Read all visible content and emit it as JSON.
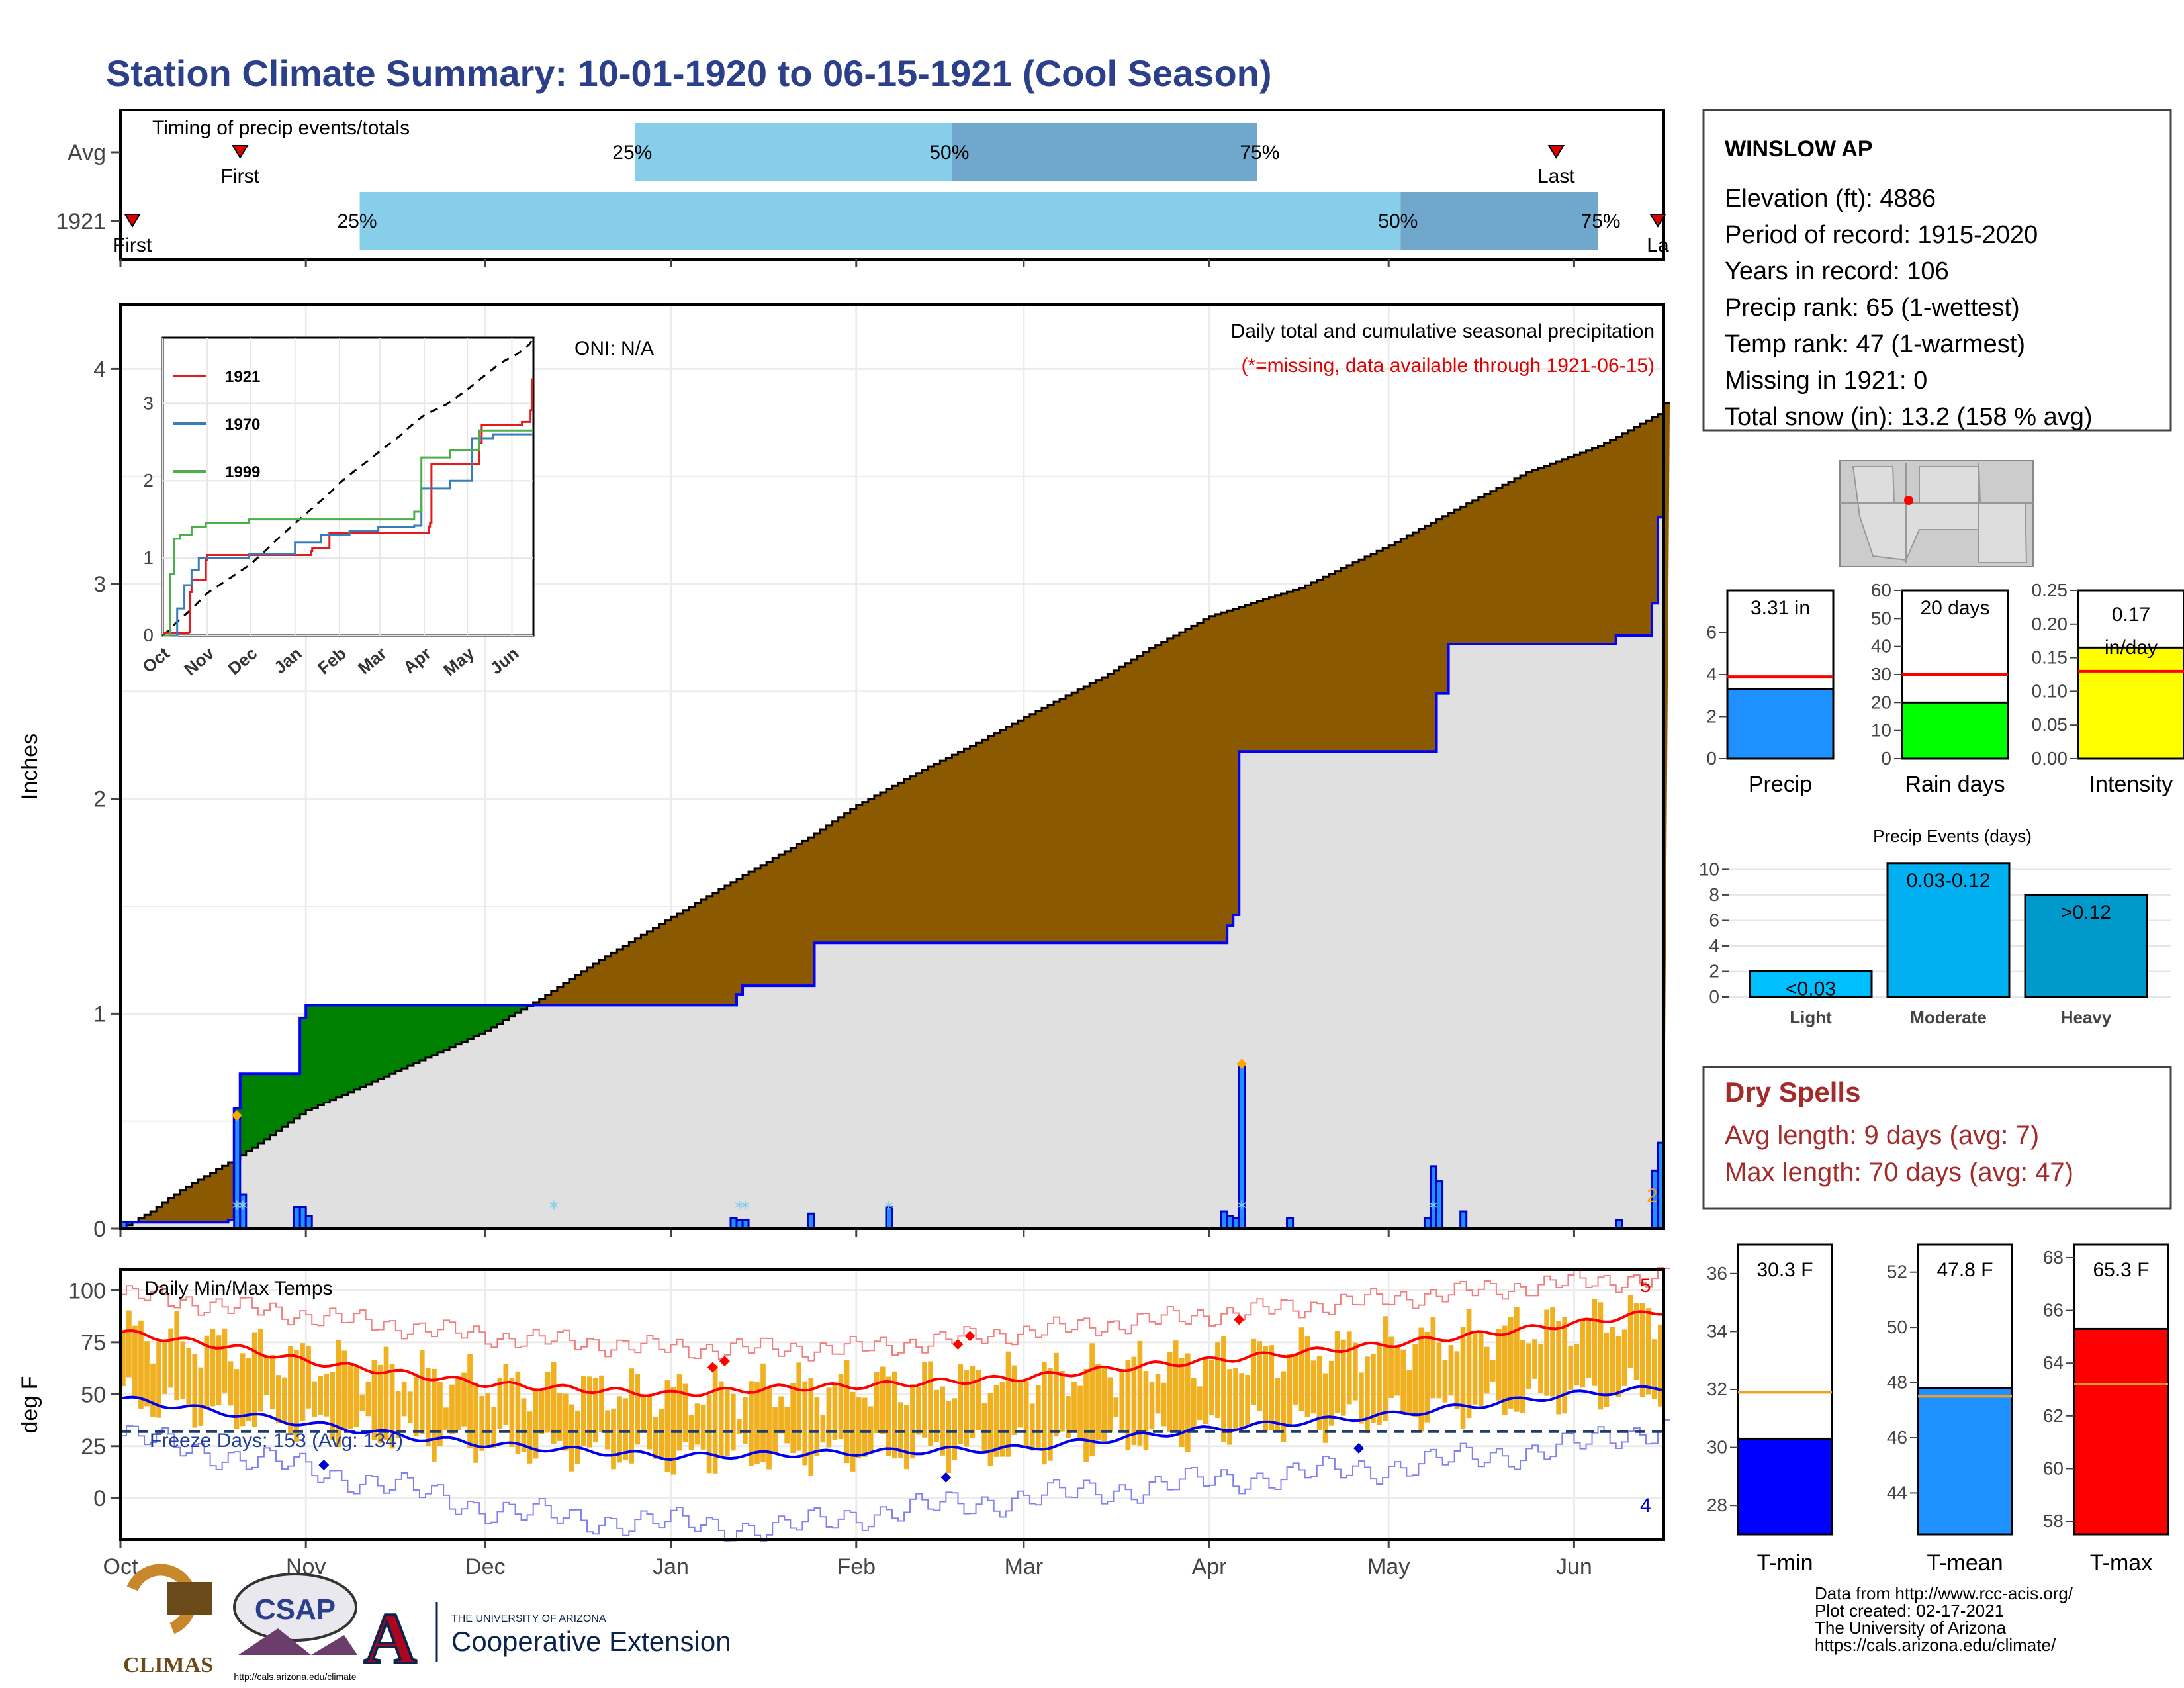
{
  "title": "Station Climate Summary: 10-01-1920 to 06-15-1921 (Cool Season)",
  "timing_panel": {
    "label": "Timing of precip events/totals",
    "rows": [
      {
        "name": "Avg",
        "first_label": "First",
        "last_label": "Last",
        "first_day": 20,
        "last_day": 240,
        "p25_day": 86,
        "p50_day": 139,
        "p75_day": 190,
        "pct25": "25%",
        "pct50": "50%",
        "pct75": "75%"
      },
      {
        "name": "1921",
        "first_label": "First",
        "last_label": "La",
        "first_day": 2,
        "last_day": 257,
        "p25_day": 40,
        "p50_day": 214,
        "p75_day": 247,
        "pct25": "25%",
        "pct50": "50%",
        "pct75": "75%"
      }
    ]
  },
  "precip_panel": {
    "heading": "Daily total and cumulative seasonal precipitation",
    "missing_note": "(*=missing, data available through 1921-06-15)",
    "oni": "ONI: N/A",
    "ylabel": "Inches",
    "yticks": [
      0,
      1,
      2,
      3,
      4
    ],
    "corner_count": "2"
  },
  "inset": {
    "series": [
      {
        "name": "1921",
        "color": "#e41a1c"
      },
      {
        "name": "1970",
        "color": "#377eb8"
      },
      {
        "name": "1999",
        "color": "#4daf4a"
      }
    ],
    "yticks": [
      0,
      1,
      2,
      3
    ],
    "months": [
      "Oct",
      "Nov",
      "Dec",
      "Jan",
      "Feb",
      "Mar",
      "Apr",
      "May",
      "Jun"
    ]
  },
  "temp_panel": {
    "heading": "Daily Min/Max Temps",
    "freeze_days": "Freeze Days: 153 (Avg: 134)",
    "ylabel": "deg F",
    "yticks": [
      0,
      25,
      50,
      75,
      100
    ],
    "count_top": "5",
    "count_bottom": "4"
  },
  "months": [
    "Oct",
    "Nov",
    "Dec",
    "Jan",
    "Feb",
    "Mar",
    "Apr",
    "May",
    "Jun"
  ],
  "station": {
    "name": "WINSLOW AP",
    "lines": [
      "Elevation (ft): 4886",
      "Period of record: 1915-2020",
      "Years in record: 106",
      "Precip rank: 65 (1-wettest)",
      "Temp rank: 47 (1-warmest)",
      "Missing in 1921: 0",
      "Total snow (in): 13.2 (158 % avg)"
    ]
  },
  "summary_bars": [
    {
      "label": "Precip",
      "value_text": "3.31 in",
      "value": 3.31,
      "avg": 3.9,
      "max": 8,
      "ticks": [
        0,
        2,
        4,
        6
      ],
      "color": "#1e90ff"
    },
    {
      "label": "Rain days",
      "value_text": "20 days",
      "value": 20,
      "avg": 30,
      "max": 60,
      "ticks": [
        0,
        10,
        20,
        30,
        40,
        50,
        60
      ],
      "color": "#00ff00"
    },
    {
      "label": "Intensity",
      "value_text": "0.17 in/day",
      "value": 0.165,
      "avg": 0.13,
      "max": 0.25,
      "ticks": [
        0,
        0.05,
        0.1,
        0.15,
        0.2,
        0.25
      ],
      "color": "#ffff00"
    }
  ],
  "events": {
    "title": "Precip Events (days)",
    "ticks": [
      0,
      2,
      4,
      6,
      8,
      10
    ],
    "bars": [
      {
        "label": "Light",
        "value_text": "<0.03",
        "value": 2,
        "color": "#00bfff"
      },
      {
        "label": "Moderate",
        "value_text": "0.03-0.12",
        "value": 10.5,
        "color": "#00b0f0"
      },
      {
        "label": "Heavy",
        "value_text": ">0.12",
        "value": 8,
        "color": "#0099cc"
      }
    ]
  },
  "dry_spells": {
    "title": "Dry Spells",
    "avg_length": "Avg length: 9 days (avg: 7)",
    "max_length": "Max length: 70 days (avg: 47)"
  },
  "temp_bars": [
    {
      "label": "T-min",
      "value_text": "30.3 F",
      "value": 30.3,
      "avg": 31.9,
      "min": 27,
      "max": 37,
      "ticks": [
        28,
        30,
        32,
        34,
        36
      ],
      "color": "#0000ff"
    },
    {
      "label": "T-mean",
      "value_text": "47.8 F",
      "value": 47.8,
      "avg": 47.5,
      "min": 42.5,
      "max": 53,
      "ticks": [
        44,
        46,
        48,
        50,
        52
      ],
      "color": "#1e90ff"
    },
    {
      "label": "T-max",
      "value_text": "65.3 F",
      "value": 65.3,
      "avg": 63.2,
      "min": 57.5,
      "max": 68.5,
      "ticks": [
        58,
        60,
        62,
        64,
        66,
        68
      ],
      "color": "#ff0000"
    }
  ],
  "credits": [
    "Data from http://www.rcc-acis.org/",
    "Plot created: 02-17-2021",
    "The University of Arizona",
    "https://cals.arizona.edu/climate/"
  ],
  "logos": {
    "climas": "CLIMAS",
    "csap": "CSAP",
    "csap_url": "http://cals.arizona.edu/climate",
    "ua_small": "THE UNIVERSITY OF ARIZONA",
    "ua_big": "Cooperative Extension"
  },
  "chart_data": {
    "type": "area",
    "xlabel": "",
    "ylabel": "Inches",
    "ylim": [
      0,
      4.3
    ],
    "x_range_days": [
      0,
      257
    ],
    "cumulative_avg": [
      [
        0,
        0
      ],
      [
        5,
        0.08
      ],
      [
        10,
        0.18
      ],
      [
        20,
        0.34
      ],
      [
        31,
        0.55
      ],
      [
        45,
        0.72
      ],
      [
        61,
        0.92
      ],
      [
        70,
        1.07
      ],
      [
        80,
        1.25
      ],
      [
        92,
        1.45
      ],
      [
        105,
        1.66
      ],
      [
        115,
        1.82
      ],
      [
        123,
        1.97
      ],
      [
        135,
        2.15
      ],
      [
        143,
        2.26
      ],
      [
        151,
        2.38
      ],
      [
        165,
        2.58
      ],
      [
        172,
        2.7
      ],
      [
        182,
        2.85
      ],
      [
        197,
        2.98
      ],
      [
        212,
        3.18
      ],
      [
        222,
        3.33
      ],
      [
        235,
        3.52
      ],
      [
        247,
        3.64
      ],
      [
        257,
        3.79
      ],
      [
        258,
        3.84
      ]
    ],
    "cumulative_1921": [
      [
        0,
        0.03
      ],
      [
        18,
        0.04
      ],
      [
        19,
        0.56
      ],
      [
        20,
        0.72
      ],
      [
        29,
        0.72
      ],
      [
        30,
        0.98
      ],
      [
        31,
        1.04
      ],
      [
        92,
        1.04
      ],
      [
        102,
        1.04
      ],
      [
        103,
        1.09
      ],
      [
        104,
        1.13
      ],
      [
        115,
        1.13
      ],
      [
        116,
        1.33
      ],
      [
        184,
        1.33
      ],
      [
        185,
        1.41
      ],
      [
        186,
        1.46
      ],
      [
        187,
        2.22
      ],
      [
        219,
        2.22
      ],
      [
        220,
        2.49
      ],
      [
        221,
        2.49
      ],
      [
        222,
        2.72
      ],
      [
        249,
        2.72
      ],
      [
        250,
        2.76
      ],
      [
        255,
        2.76
      ],
      [
        256,
        2.91
      ],
      [
        257,
        3.31
      ]
    ],
    "daily_precip": [
      [
        0,
        0.03
      ],
      [
        19,
        0.52
      ],
      [
        20,
        0.16
      ],
      [
        29,
        0.1
      ],
      [
        30,
        0.1
      ],
      [
        31,
        0.06
      ],
      [
        102,
        0.05
      ],
      [
        103,
        0.04
      ],
      [
        104,
        0.04
      ],
      [
        115,
        0.07
      ],
      [
        128,
        0.1
      ],
      [
        184,
        0.08
      ],
      [
        185,
        0.06
      ],
      [
        186,
        0.05
      ],
      [
        187,
        0.76
      ],
      [
        195,
        0.05
      ],
      [
        218,
        0.05
      ],
      [
        219,
        0.29
      ],
      [
        220,
        0.22
      ],
      [
        224,
        0.08
      ],
      [
        250,
        0.04
      ],
      [
        256,
        0.27
      ],
      [
        257,
        0.4
      ]
    ],
    "temp_ylim": [
      -20,
      110
    ],
    "tmax_avg_knots": [
      [
        0,
        80
      ],
      [
        20,
        72
      ],
      [
        31,
        66
      ],
      [
        61,
        55
      ],
      [
        92,
        50
      ],
      [
        110,
        53
      ],
      [
        123,
        54
      ],
      [
        151,
        58
      ],
      [
        172,
        64
      ],
      [
        181,
        66
      ],
      [
        212,
        74
      ],
      [
        243,
        84
      ],
      [
        258,
        90
      ]
    ],
    "tmin_avg_knots": [
      [
        0,
        48
      ],
      [
        31,
        36
      ],
      [
        50,
        29
      ],
      [
        61,
        26
      ],
      [
        92,
        20
      ],
      [
        123,
        22
      ],
      [
        151,
        24
      ],
      [
        181,
        33
      ],
      [
        212,
        40
      ],
      [
        243,
        50
      ],
      [
        258,
        53
      ]
    ],
    "record_high_knots": [
      [
        0,
        98
      ],
      [
        31,
        88
      ],
      [
        61,
        78
      ],
      [
        92,
        72
      ],
      [
        123,
        72
      ],
      [
        151,
        80
      ],
      [
        181,
        88
      ],
      [
        212,
        96
      ],
      [
        243,
        104
      ],
      [
        258,
        106
      ]
    ],
    "record_low_knots": [
      [
        0,
        30
      ],
      [
        15,
        22
      ],
      [
        31,
        14
      ],
      [
        45,
        6
      ],
      [
        61,
        -5
      ],
      [
        75,
        -10
      ],
      [
        92,
        -12
      ],
      [
        110,
        -15
      ],
      [
        123,
        -8
      ],
      [
        140,
        -3
      ],
      [
        151,
        0
      ],
      [
        181,
        8
      ],
      [
        212,
        15
      ],
      [
        243,
        25
      ],
      [
        258,
        35
      ]
    ],
    "freeze_line": 32
  }
}
